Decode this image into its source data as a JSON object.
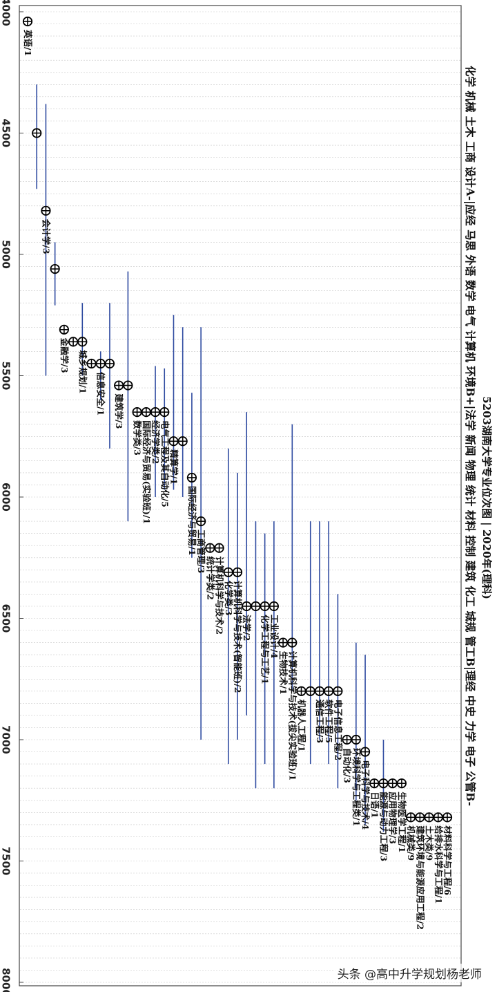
{
  "chart_data": {
    "type": "scatter",
    "title": "5203湖南大学专业位次图 | 2020年(理科)",
    "legend_text": "化学 机械 土木 工商 设计A-|应经 马思 外语 数学 电气 计算机 环境B+|法学 新闻 物理 统计 材料 控制 建筑 化工 城规 管工B|理经 中史 力学 电子 公管B-",
    "axis": {
      "label": "",
      "range": [
        4000,
        8000
      ],
      "ticks": [
        4000,
        4500,
        5000,
        5500,
        6000,
        6500,
        7000,
        7500,
        8000
      ],
      "grid": true
    },
    "points": [
      {
        "label": "英语/1",
        "value": 4040,
        "low": null,
        "high": null
      },
      {
        "label": "",
        "value": 4500,
        "low": 4300,
        "high": 4730
      },
      {
        "label": "会计学/3",
        "value": 4820,
        "low": 4380,
        "high": 5500
      },
      {
        "label": "",
        "value": 5060,
        "low": 4950,
        "high": 5210
      },
      {
        "label": "金融学/3",
        "value": 5310,
        "low": null,
        "high": null
      },
      {
        "label": "",
        "value": 5360,
        "low": null,
        "high": null
      },
      {
        "label": "城乡规划/1",
        "value": 5360,
        "low": 5200,
        "high": 5500
      },
      {
        "label": "",
        "value": 5450,
        "low": null,
        "high": null
      },
      {
        "label": "信息安全/1",
        "value": 5450,
        "low": 5400,
        "high": 5600
      },
      {
        "label": "",
        "value": 5450,
        "low": 5200,
        "high": 5800
      },
      {
        "label": "建筑学/3",
        "value": 5540,
        "low": null,
        "high": null
      },
      {
        "label": "",
        "value": 5540,
        "low": 5070,
        "high": 6100
      },
      {
        "label": "数学类/3",
        "value": 5650,
        "low": null,
        "high": null
      },
      {
        "label": "国际经济与贸易(实验班)/1",
        "value": 5650,
        "low": null,
        "high": null
      },
      {
        "label": "经济学类/2",
        "value": 5650,
        "low": 5460,
        "high": 6000
      },
      {
        "label": "电气工程及其自动化/5",
        "value": 5650,
        "low": 5470,
        "high": 5970
      },
      {
        "label": "精算学/1",
        "value": 5770,
        "low": 5250,
        "high": 5970
      },
      {
        "label": "",
        "value": 5770,
        "low": 5300,
        "high": 6000
      },
      {
        "label": "国际经济与贸易/1",
        "value": 5920,
        "low": 5570,
        "high": 6250
      },
      {
        "label": "工商管理/3",
        "value": 6100,
        "low": 5300,
        "high": 7000
      },
      {
        "label": "统计学类/2",
        "value": 6210,
        "low": null,
        "high": null
      },
      {
        "label": "计算机科学与技术/2",
        "value": 6210,
        "low": null,
        "high": null
      },
      {
        "label": "化学类/3",
        "value": 6310,
        "low": 5800,
        "high": 7100
      },
      {
        "label": "计算机科学与技术(智能班)/2",
        "value": 6310,
        "low": 5900,
        "high": 7000
      },
      {
        "label": "法学/2",
        "value": 6450,
        "low": 5650,
        "high": 6900
      },
      {
        "label": "",
        "value": 6450,
        "low": 6100,
        "high": 7200
      },
      {
        "label": "化学工程与工艺/1",
        "value": 6450,
        "low": 6150,
        "high": 7100
      },
      {
        "label": "工业设计/4",
        "value": 6450,
        "low": 6100,
        "high": 7200
      },
      {
        "label": "生物技术/1",
        "value": 6600,
        "low": null,
        "high": null
      },
      {
        "label": "计算机科学与技术(拔尖实验班)/1",
        "value": 6600,
        "low": 5700,
        "high": 6800
      },
      {
        "label": "机器人工程/1",
        "value": 6800,
        "low": null,
        "high": null
      },
      {
        "label": "",
        "value": 6800,
        "low": 6100,
        "high": 7100
      },
      {
        "label": "通信工程/3",
        "value": 6800,
        "low": 6100,
        "high": 7000
      },
      {
        "label": "软件工程/5",
        "value": 6800,
        "low": 6100,
        "high": 7100
      },
      {
        "label": "电子信息工程/2",
        "value": 6800,
        "low": 6400,
        "high": 7200
      },
      {
        "label": "自动化/3",
        "value": 7000,
        "low": null,
        "high": null
      },
      {
        "label": "环境科学与工程类/1",
        "value": 7000,
        "low": 6600,
        "high": 7250
      },
      {
        "label": "电子科学与技术/4",
        "value": 7050,
        "low": 6650,
        "high": 7350
      },
      {
        "label": "日语/1",
        "value": 7180,
        "low": null,
        "high": null
      },
      {
        "label": "能源与动力工程/3",
        "value": 7180,
        "low": 7000,
        "high": 7380
      },
      {
        "label": "应用物理学/3",
        "value": 7180,
        "low": null,
        "high": null
      },
      {
        "label": "生物医学工程/1",
        "value": 7180,
        "low": null,
        "high": null
      },
      {
        "label": "机械类/9",
        "value": 7320,
        "low": null,
        "high": null
      },
      {
        "label": "建筑环境与能源应用工程/2",
        "value": 7320,
        "low": null,
        "high": null
      },
      {
        "label": "土木类/9",
        "value": 7320,
        "low": null,
        "high": null
      },
      {
        "label": "给排水科学与工程/1",
        "value": 7320,
        "low": null,
        "high": null
      },
      {
        "label": "材料科学与工程/6",
        "value": 7320,
        "low": null,
        "high": null
      }
    ]
  },
  "watermark": "头条 @高中升学规划杨老师"
}
